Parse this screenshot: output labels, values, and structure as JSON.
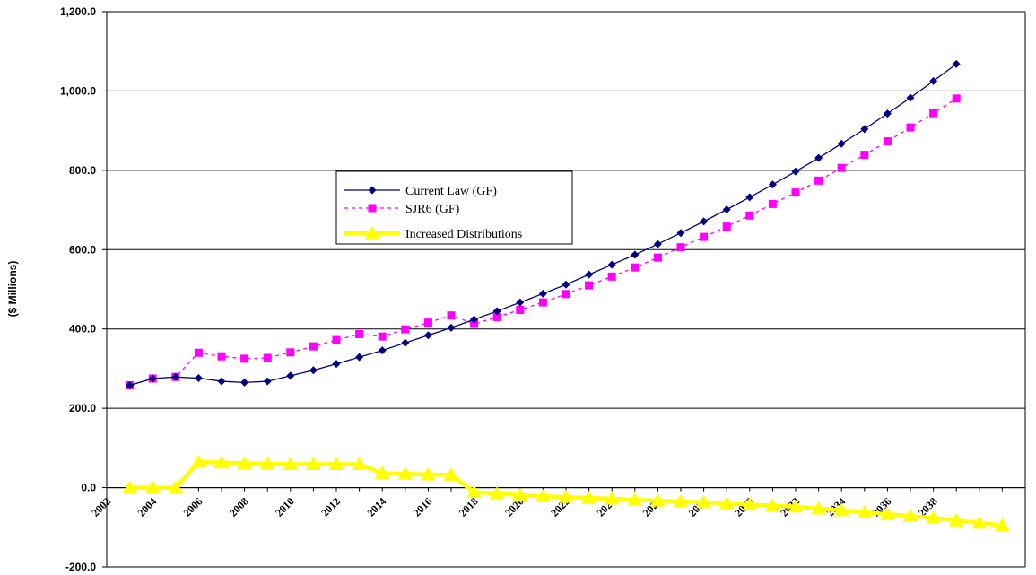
{
  "chart_data": {
    "type": "line",
    "title": "",
    "xlabel": "",
    "ylabel": "($ Millions)",
    "ylim": [
      -200,
      1200
    ],
    "y_ticks": [
      "1,200.0",
      "1,000.0",
      "800.0",
      "600.0",
      "400.0",
      "200.0",
      "0.0",
      "-200.0"
    ],
    "y_tick_values": [
      1200,
      1000,
      800,
      600,
      400,
      200,
      0,
      -200
    ],
    "x_tick_labels": [
      "2002",
      "2004",
      "2006",
      "2008",
      "2010",
      "2012",
      "2014",
      "2016",
      "2018",
      "2020",
      "2022",
      "2024",
      "2026",
      "2028",
      "2030",
      "2032",
      "2034",
      "2036",
      "2038"
    ],
    "grid": "horizontal",
    "legend_position": "center-left",
    "series": [
      {
        "name": "Current Law (GF)",
        "color": "#000080",
        "marker": "diamond",
        "line_style": "solid",
        "x": [
          2003,
          2004,
          2005,
          2006,
          2007,
          2008,
          2009,
          2010,
          2011,
          2012,
          2013,
          2014,
          2015,
          2016,
          2017,
          2018,
          2019,
          2020,
          2021,
          2022,
          2023,
          2024,
          2025,
          2026,
          2027,
          2028,
          2029,
          2030,
          2031,
          2032,
          2033,
          2034,
          2035,
          2036,
          2037,
          2038,
          2039
        ],
        "values": [
          258,
          275,
          279,
          276,
          268,
          265,
          268,
          282,
          296,
          312,
          329,
          346,
          365,
          384,
          403,
          424,
          445,
          467,
          489,
          512,
          537,
          562,
          587,
          614,
          642,
          671,
          701,
          732,
          764,
          797,
          831,
          867,
          904,
          943,
          983,
          1025,
          1068
        ]
      },
      {
        "name": "SJR6 (GF)",
        "color": "#ff00ff",
        "marker": "square",
        "line_style": "dashed",
        "x": [
          2003,
          2004,
          2005,
          2006,
          2007,
          2008,
          2009,
          2010,
          2011,
          2012,
          2013,
          2014,
          2015,
          2016,
          2017,
          2018,
          2019,
          2020,
          2021,
          2022,
          2023,
          2024,
          2025,
          2026,
          2027,
          2028,
          2029,
          2030,
          2031,
          2032,
          2033,
          2034,
          2035,
          2036,
          2037,
          2038,
          2039
        ],
        "values": [
          258,
          275,
          279,
          340,
          331,
          325,
          327,
          341,
          356,
          372,
          387,
          381,
          399,
          416,
          434,
          413,
          430,
          448,
          467,
          488,
          510,
          532,
          555,
          580,
          606,
          632,
          658,
          686,
          715,
          744,
          774,
          806,
          839,
          873,
          908,
          944,
          981
        ]
      },
      {
        "name": "Increased Distributions",
        "color": "#ffff00",
        "marker": "triangle",
        "line_style": "solid",
        "x": [
          2003,
          2004,
          2005,
          2006,
          2007,
          2008,
          2009,
          2010,
          2011,
          2012,
          2013,
          2014,
          2015,
          2016,
          2017,
          2018,
          2019,
          2020,
          2021,
          2022,
          2023,
          2024,
          2025,
          2026,
          2027,
          2028,
          2029,
          2030,
          2031,
          2032,
          2033,
          2034,
          2035,
          2036,
          2037,
          2038,
          2039,
          2040,
          2041
        ],
        "values": [
          0,
          0,
          0,
          65,
          63,
          61,
          60,
          59,
          59,
          59,
          59,
          36,
          35,
          33,
          32,
          -11,
          -15,
          -19,
          -22,
          -24,
          -26,
          -28,
          -31,
          -33,
          -35,
          -37,
          -40,
          -43,
          -45,
          -48,
          -53,
          -57,
          -62,
          -67,
          -72,
          -76,
          -83,
          -89,
          -95
        ]
      }
    ]
  }
}
